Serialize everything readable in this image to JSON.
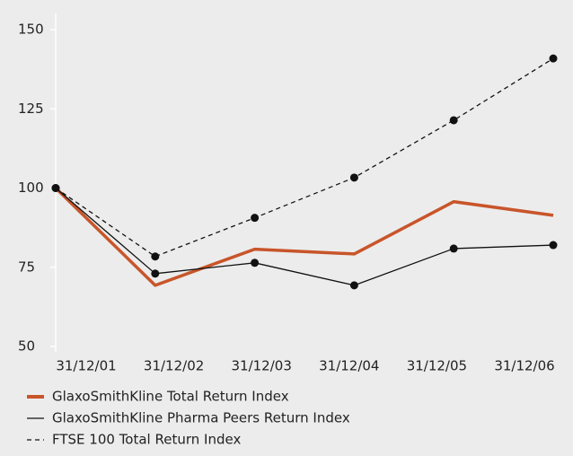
{
  "chart_data": {
    "type": "line",
    "categories": [
      "31/12/01",
      "31/12/02",
      "31/12/03",
      "31/12/04",
      "31/12/05",
      "31/12/06"
    ],
    "series": [
      {
        "name": "GlaxoSmithKline Total Return Index",
        "color": "#c8552a",
        "dash": false,
        "markers": false,
        "values": [
          100,
          69.3,
          80.7,
          79.2,
          95.7,
          91.4
        ]
      },
      {
        "name": "GlaxoSmithKline Pharma Peers Return Index",
        "color": "#111111",
        "dash": false,
        "markers": true,
        "values": [
          100,
          73,
          76.4,
          69.3,
          80.9,
          82
        ]
      },
      {
        "name": "FTSE 100 Total Return Index",
        "color": "#111111",
        "dash": true,
        "markers": true,
        "values": [
          100,
          78.4,
          90.6,
          103.3,
          121.4,
          140.9
        ]
      }
    ],
    "ylim": [
      50,
      150
    ],
    "yticks": [
      50,
      75,
      100,
      125,
      150
    ]
  }
}
